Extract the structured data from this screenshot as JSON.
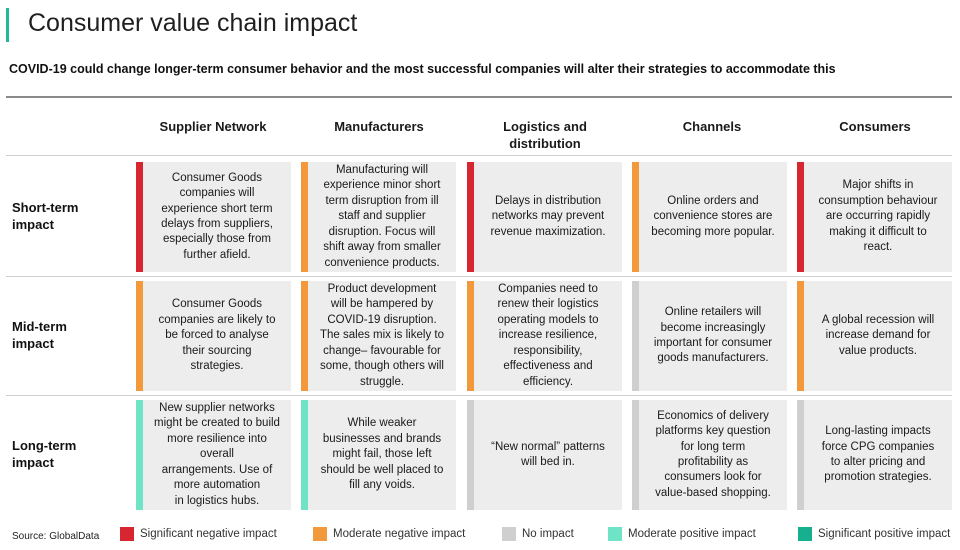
{
  "title": "Consumer value chain impact",
  "subtitle": "COVID-19 could change longer-term consumer behavior and the most successful companies will alter their strategies to accommodate this",
  "colors": {
    "accent": "#1fb89a",
    "significant_negative": "#d7262f",
    "moderate_negative": "#f29a3b",
    "no_impact": "#cfcfcf",
    "moderate_positive": "#6fe3c6",
    "significant_positive": "#17b08f"
  },
  "columns": [
    "Supplier Network",
    "Manufacturers",
    "Logistics and\ndistribution",
    "Channels",
    "Consumers"
  ],
  "rows": [
    {
      "label": "Short-term\nimpact",
      "cells": [
        {
          "text": "Consumer Goods\ncompanies will\nexperience short term\ndelays from suppliers,\nespecially those from\nfurther afield.",
          "impact": "significant_negative"
        },
        {
          "text": "Manufacturing will\nexperience minor short\nterm disruption from ill\nstaff and supplier\ndisruption. Focus will\nshift away from smaller\nconvenience products.",
          "impact": "moderate_negative"
        },
        {
          "text": "Delays in distribution\nnetworks may prevent\nrevenue maximization.",
          "impact": "significant_negative"
        },
        {
          "text": "Online orders and\nconvenience stores are\nbecoming more popular.",
          "impact": "moderate_negative"
        },
        {
          "text": "Major shifts in\nconsumption behaviour\nare occurring rapidly\nmaking it difficult to\nreact.",
          "impact": "significant_negative"
        }
      ]
    },
    {
      "label": "Mid-term\nimpact",
      "cells": [
        {
          "text": "Consumer Goods\ncompanies are likely to\nbe forced to analyse\ntheir sourcing\nstrategies.",
          "impact": "moderate_negative"
        },
        {
          "text": "Product development\nwill be hampered by\nCOVID-19 disruption.\nThe sales mix is likely to\nchange– favourable for\nsome, though others will\nstruggle.",
          "impact": "moderate_negative"
        },
        {
          "text": "Companies need to\nrenew their  logistics\noperating models to\nincrease resilience,\nresponsibility,\neffectiveness and\nefficiency.",
          "impact": "moderate_negative"
        },
        {
          "text": "Online retailers will\nbecome increasingly\nimportant for consumer\ngoods manufacturers.",
          "impact": "no_impact"
        },
        {
          "text": "A global recession will\nincrease demand for\nvalue products.",
          "impact": "moderate_negative"
        }
      ]
    },
    {
      "label": "Long-term\nimpact",
      "cells": [
        {
          "text": "New supplier networks\nmight be created to build\nmore resilience into\noverall\narrangements. Use of\nmore automation\nin logistics hubs.",
          "impact": "moderate_positive"
        },
        {
          "text": "While weaker\nbusinesses and brands\nmight fail, those left\nshould be well placed to\nfill any voids.",
          "impact": "moderate_positive"
        },
        {
          "text": "“New normal” patterns\nwill bed in.",
          "impact": "no_impact"
        },
        {
          "text": "Economics of delivery\nplatforms key question\nfor long term\nprofitability as\nconsumers look for\nvalue-based shopping.",
          "impact": "no_impact"
        },
        {
          "text": "Long-lasting impacts\nforce CPG companies\nto alter pricing and\npromotion strategies.",
          "impact": "no_impact"
        }
      ]
    }
  ],
  "source": "Source: GlobalData",
  "legend": [
    {
      "label": "Significant negative impact",
      "impact": "significant_negative"
    },
    {
      "label": "Moderate negative impact",
      "impact": "moderate_negative"
    },
    {
      "label": "No impact",
      "impact": "no_impact"
    },
    {
      "label": "Moderate positive impact",
      "impact": "moderate_positive"
    },
    {
      "label": "Significant positive impact",
      "impact": "significant_positive"
    }
  ]
}
